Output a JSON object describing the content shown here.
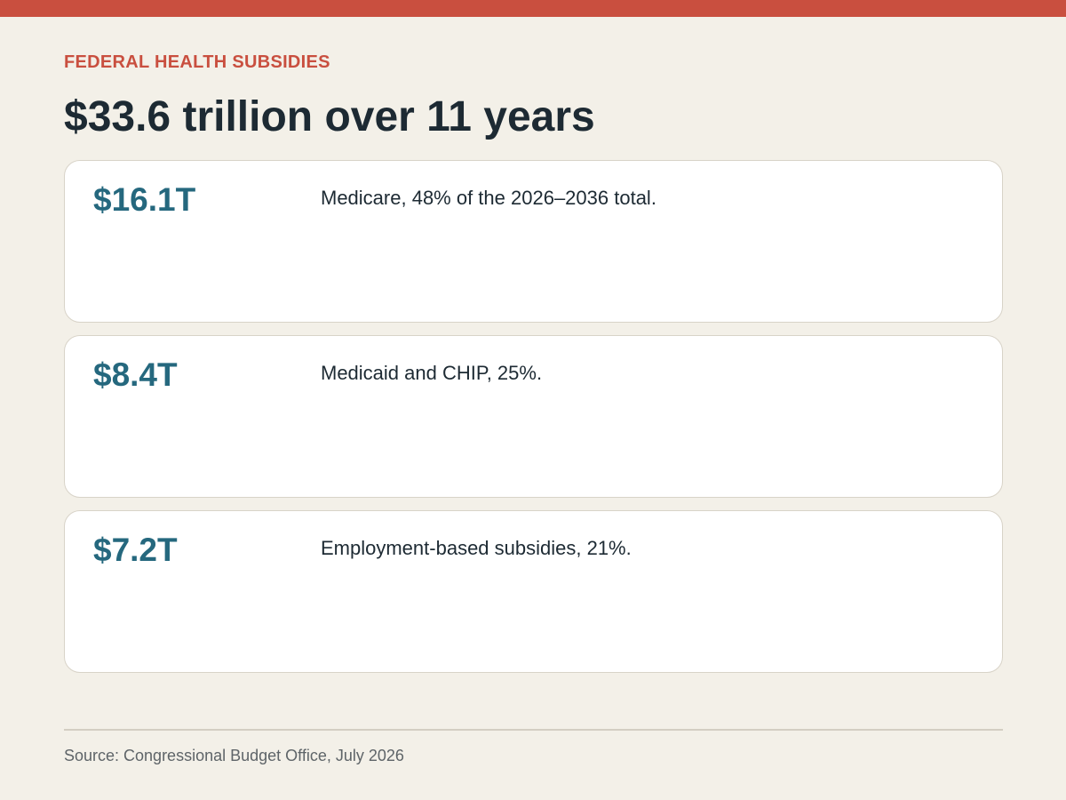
{
  "header": {
    "eyebrow": "FEDERAL HEALTH SUBSIDIES",
    "title": "$33.6 trillion over 11 years"
  },
  "cards": [
    {
      "value": "$16.1T",
      "description": "Medicare, 48% of the 2026–2036 total."
    },
    {
      "value": "$8.4T",
      "description": "Medicaid and CHIP, 25%."
    },
    {
      "value": "$7.2T",
      "description": "Employment-based subsidies, 21%."
    }
  ],
  "footer": {
    "source": "Source: Congressional Budget Office, July 2026"
  },
  "colors": {
    "accent": "#c94f3f",
    "value": "#25687e",
    "background": "#f3f0e8",
    "text": "#1d2a33"
  }
}
